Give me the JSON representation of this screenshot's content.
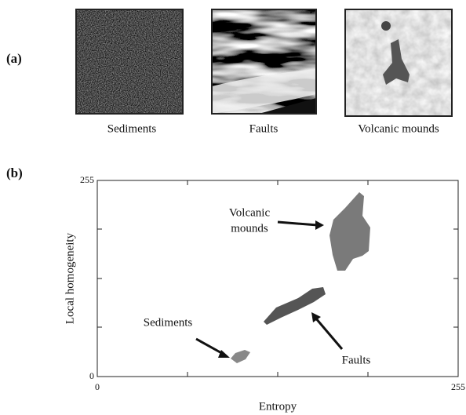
{
  "panel_a": {
    "label": "(a)",
    "images": [
      {
        "caption": "Sediments"
      },
      {
        "caption": "Faults"
      },
      {
        "caption": "Volcanic mounds"
      }
    ]
  },
  "panel_b": {
    "label": "(b)",
    "chart_data": {
      "type": "region",
      "xlabel": "Entropy",
      "ylabel": "Local homogeneity",
      "xlim": [
        0,
        255
      ],
      "ylim": [
        0,
        255
      ],
      "xticks": [
        0,
        255
      ],
      "yticks": [
        0,
        255
      ],
      "annotations": [
        {
          "lines": [
            "Volcanic",
            "mounds"
          ]
        },
        {
          "lines": [
            "Faults"
          ]
        },
        {
          "lines": [
            "Sediments"
          ]
        }
      ]
    }
  }
}
